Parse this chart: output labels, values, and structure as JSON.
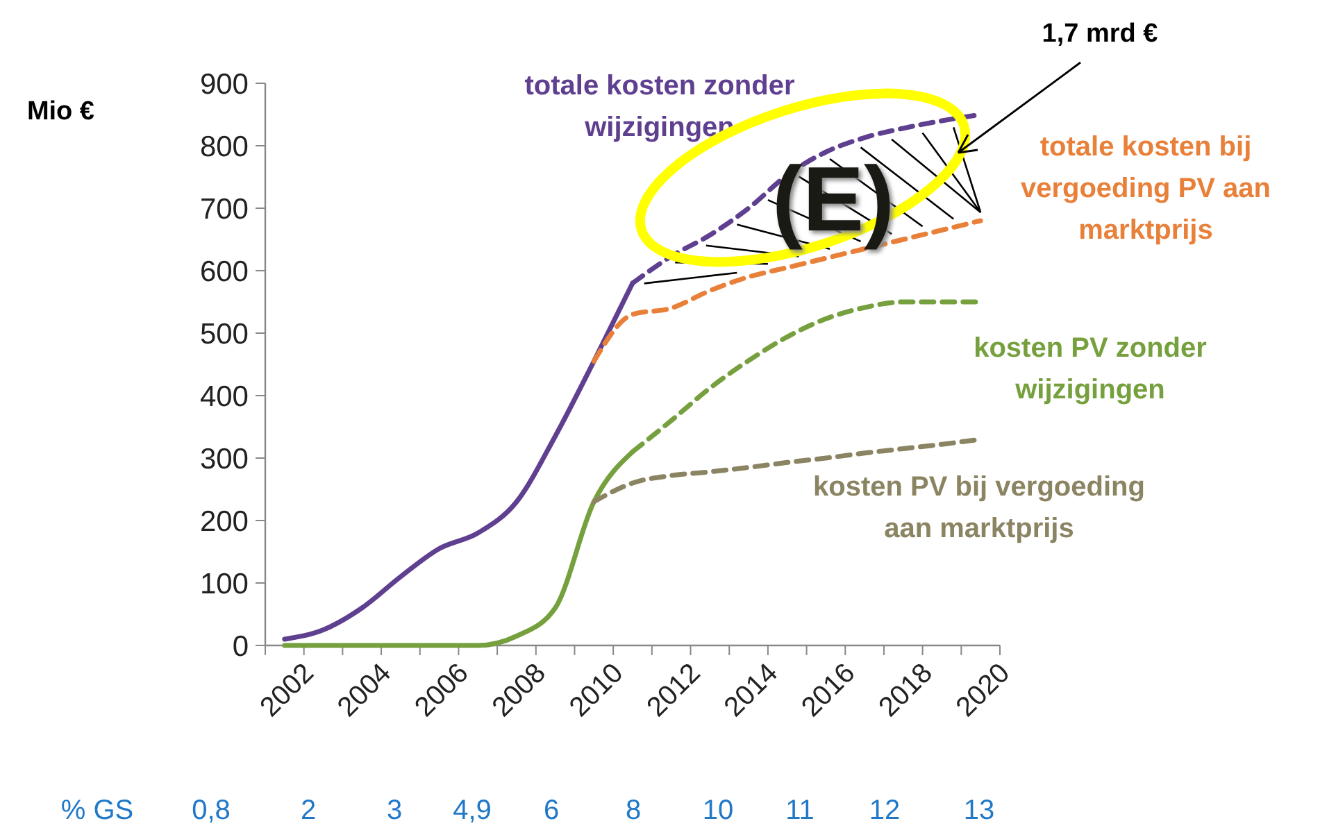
{
  "chart_data": {
    "type": "line",
    "ylabel": "Mio €",
    "categories": [
      "2002",
      null,
      "2004",
      null,
      "2006",
      null,
      "2008",
      null,
      "2010",
      null,
      "2012",
      null,
      "2014",
      null,
      "2016",
      null,
      "2018",
      null,
      "2020"
    ],
    "series": [
      {
        "color": "#5f3f8f",
        "line_style": "solid",
        "values": [
          10,
          25,
          60,
          110,
          155,
          180,
          230,
          335,
          455,
          580,
          null,
          null,
          null,
          null,
          null,
          null,
          null,
          null,
          null
        ]
      },
      {
        "name": "totale kosten  zonder wijzigingen",
        "color": "#5f3f8f",
        "line_style": "dashed",
        "values": [
          null,
          null,
          null,
          null,
          null,
          null,
          null,
          null,
          null,
          580,
          623,
          657,
          700,
          753,
          790,
          813,
          828,
          840,
          850
        ]
      },
      {
        "name": "totale kosten  bij vergoeding PV aan marktprijs",
        "color": "#e8803a",
        "line_style": "dashed",
        "values": [
          null,
          null,
          null,
          null,
          null,
          null,
          null,
          null,
          455,
          530,
          540,
          568,
          590,
          605,
          620,
          635,
          650,
          665,
          680
        ]
      },
      {
        "color": "#76a03e",
        "line_style": "solid",
        "values": [
          0,
          0,
          0,
          0,
          0,
          0,
          15,
          60,
          230,
          310,
          null,
          null,
          null,
          null,
          null,
          null,
          null,
          null,
          null
        ]
      },
      {
        "name": "kosten PV zonder wijzigingen",
        "color": "#76a03e",
        "line_style": "dashed",
        "values": [
          null,
          null,
          null,
          null,
          null,
          null,
          null,
          null,
          null,
          310,
          360,
          412,
          456,
          494,
          523,
          541,
          550,
          550,
          550
        ]
      },
      {
        "name": "kosten PV bij vergoeding aan marktprijs",
        "color": "#8b8462",
        "line_style": "dashed",
        "values": [
          null,
          null,
          null,
          null,
          null,
          null,
          null,
          null,
          230,
          260,
          272,
          278,
          285,
          293,
          300,
          308,
          315,
          322,
          330
        ]
      }
    ],
    "ylim": [
      0,
      900
    ],
    "yticks": [
      0,
      100,
      200,
      300,
      400,
      500,
      600,
      700,
      800,
      900
    ],
    "grid": false,
    "legend": false,
    "marker": "none",
    "annotations": [
      "(E)",
      "1,7 mrd €",
      "% GS",
      "0,8",
      "2",
      "3",
      "4,9",
      "6",
      "8",
      "10",
      "11",
      "12",
      "13"
    ]
  }
}
